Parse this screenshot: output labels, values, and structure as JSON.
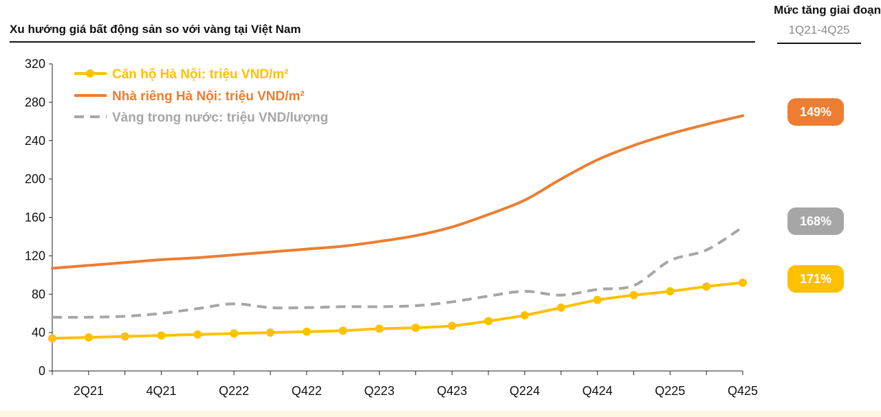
{
  "header": {
    "title": "Xu hướng giá bất động sản so với vàng tại Việt Nam",
    "side_heading": "Mức tăng giai đoạn",
    "side_period": "1Q21-4Q25"
  },
  "badges": [
    {
      "label": "149%",
      "color": "#ed7d31"
    },
    {
      "label": "168%",
      "color": "#a6a6a6"
    },
    {
      "label": "171%",
      "color": "#ffc000"
    }
  ],
  "chart_data": {
    "type": "line",
    "title": "Xu hướng giá bất động sản so với vàng tại Việt Nam",
    "x": [
      "1Q21",
      "2Q21",
      "3Q21",
      "4Q21",
      "1Q22",
      "2Q22",
      "3Q22",
      "4Q22",
      "1Q23",
      "2Q23",
      "3Q23",
      "4Q23",
      "1Q24",
      "2Q24",
      "3Q24",
      "4Q24",
      "1Q25",
      "2Q25",
      "3Q25",
      "4Q25"
    ],
    "x_tick_labels": [
      "",
      "2Q21",
      "",
      "4Q21",
      "",
      "Q222",
      "",
      "Q422",
      "",
      "Q223",
      "",
      "Q423",
      "",
      "Q224",
      "",
      "Q424",
      "",
      "Q225",
      "",
      "Q425"
    ],
    "ylim": [
      0,
      320
    ],
    "yticks": [
      0,
      40,
      80,
      120,
      160,
      200,
      240,
      280,
      320
    ],
    "legend_position": "top-left",
    "grid": false,
    "series": [
      {
        "name": "Căn hộ Hà Nội: triệu VND/m²",
        "color": "#ffc000",
        "style": "solid-markers",
        "values": [
          34,
          35,
          36,
          37,
          38,
          39,
          40,
          41,
          42,
          44,
          45,
          47,
          52,
          58,
          66,
          74,
          79,
          83,
          88,
          92
        ]
      },
      {
        "name": "Nhà riêng Hà Nội: triệu VND/m²",
        "color": "#ed7d31",
        "style": "solid",
        "values": [
          107,
          110,
          113,
          116,
          118,
          121,
          124,
          127,
          130,
          135,
          141,
          150,
          163,
          178,
          200,
          220,
          235,
          247,
          257,
          266
        ]
      },
      {
        "name": "Vàng trong nước: triệu VND/lượng",
        "color": "#a6a6a6",
        "style": "dashed",
        "values": [
          56,
          56,
          57,
          60,
          65,
          70,
          66,
          66,
          67,
          67,
          68,
          72,
          78,
          83,
          79,
          85,
          89,
          115,
          126,
          150
        ]
      }
    ]
  }
}
